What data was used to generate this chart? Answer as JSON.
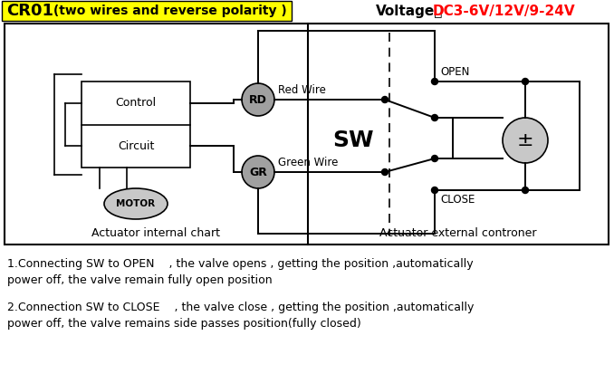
{
  "title_cr01": "CR01",
  "title_desc": " (two wires and reverse polarity )",
  "voltage_label": "Voltage：",
  "voltage_value": "DC3-6V/12V/9-24V",
  "bg_color": "#ffffff",
  "yellow_bg": "#ffff00",
  "gray_circle": "#a0a0a0",
  "light_gray": "#c8c8c8",
  "black": "#000000",
  "red": "#ff0000",
  "label_rd": "RD",
  "label_gr": "GR",
  "label_motor": "MOTOR",
  "label_control": "Control",
  "label_circuit": "Circuit",
  "label_sw": "SW",
  "label_open": "OPEN",
  "label_close": "CLOSE",
  "label_red_wire": "Red Wire",
  "label_green_wire": "Green Wire",
  "label_internal": "Actuator internal chart",
  "label_external": "Actuator external controner",
  "text1_line1": "1.Connecting SW to OPEN    , the valve opens , getting the position ,automatically",
  "text1_line2": "power off, the valve remain fully open position",
  "text2_line1": "2.Connection SW to CLOSE    , the valve close , getting the position ,automatically",
  "text2_line2": "power off, the valve remains side passes position(fully closed)"
}
